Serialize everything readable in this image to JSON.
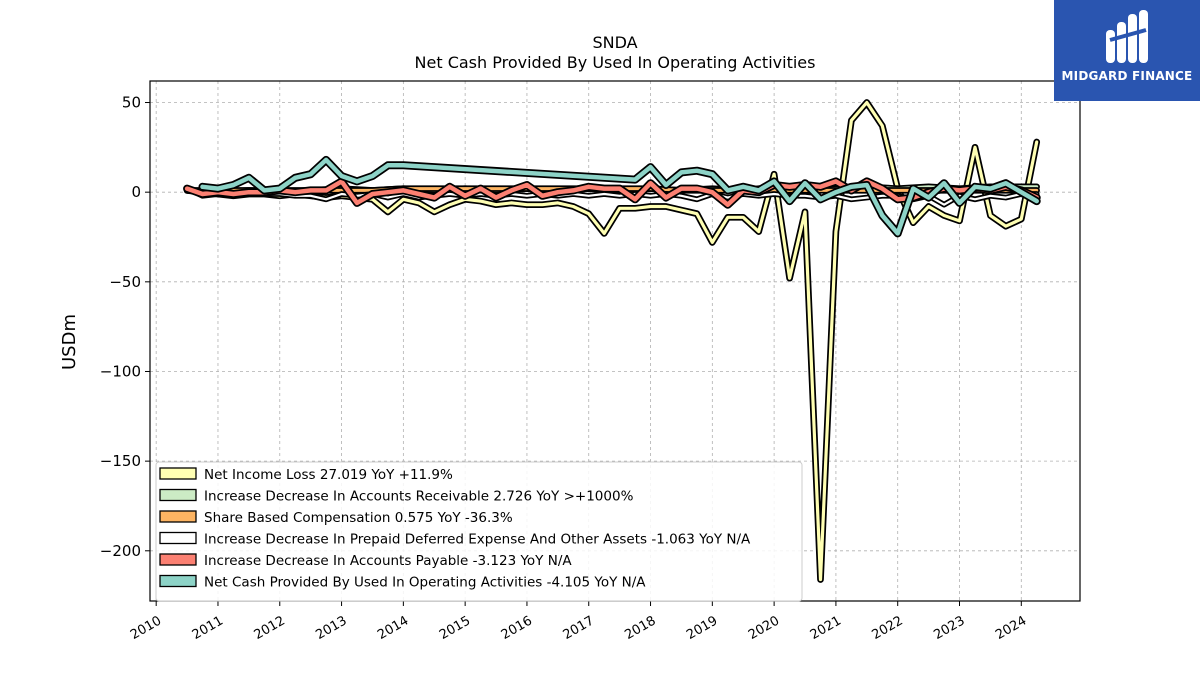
{
  "chart_data": {
    "type": "line",
    "title": "SNDA",
    "subtitle": "Net Cash Provided By Used In Operating Activities",
    "ylabel": "USDm",
    "xlabel": "",
    "xlim": [
      2009.9,
      2024.95
    ],
    "ylim": [
      -228,
      62
    ],
    "yticks": [
      50,
      0,
      -50,
      -100,
      -150,
      -200
    ],
    "ytick_labels": [
      "50",
      "0",
      "−50",
      "−100",
      "−150",
      "−200"
    ],
    "xticks": [
      2010,
      2011,
      2012,
      2013,
      2014,
      2015,
      2016,
      2017,
      2018,
      2019,
      2020,
      2021,
      2022,
      2023,
      2024
    ],
    "xtick_labels": [
      "2010",
      "2011",
      "2012",
      "2013",
      "2014",
      "2015",
      "2016",
      "2017",
      "2018",
      "2019",
      "2020",
      "2021",
      "2022",
      "2023",
      "2024"
    ],
    "grid": true,
    "legend_position": "lower-left",
    "series": [
      {
        "name": "Net Income Loss  27.019 YoY +11.9%",
        "color": "#ffffb3",
        "width": 3.2,
        "points": [
          [
            2010.5,
            1
          ],
          [
            2010.75,
            0
          ],
          [
            2011.0,
            -1
          ],
          [
            2011.25,
            -2
          ],
          [
            2011.5,
            -1
          ],
          [
            2011.75,
            -1
          ],
          [
            2012.0,
            -2
          ],
          [
            2012.25,
            -1
          ],
          [
            2012.5,
            -2
          ],
          [
            2012.75,
            -3
          ],
          [
            2013.0,
            -2
          ],
          [
            2013.25,
            -3
          ],
          [
            2013.5,
            -4
          ],
          [
            2013.75,
            -11
          ],
          [
            2014.0,
            -4
          ],
          [
            2014.25,
            -6
          ],
          [
            2014.5,
            -11
          ],
          [
            2014.75,
            -7
          ],
          [
            2015.0,
            -4
          ],
          [
            2015.25,
            -5
          ],
          [
            2015.5,
            -7
          ],
          [
            2015.75,
            -6
          ],
          [
            2016.0,
            -7
          ],
          [
            2016.25,
            -7
          ],
          [
            2016.5,
            -6
          ],
          [
            2016.75,
            -8
          ],
          [
            2017.0,
            -12
          ],
          [
            2017.25,
            -23
          ],
          [
            2017.5,
            -9
          ],
          [
            2017.75,
            -9
          ],
          [
            2018.0,
            -8
          ],
          [
            2018.25,
            -8
          ],
          [
            2018.5,
            -10
          ],
          [
            2018.75,
            -12
          ],
          [
            2019.0,
            -28
          ],
          [
            2019.25,
            -14
          ],
          [
            2019.5,
            -14
          ],
          [
            2019.75,
            -22
          ],
          [
            2020.0,
            10
          ],
          [
            2020.25,
            -48
          ],
          [
            2020.5,
            -11
          ],
          [
            2020.75,
            -216
          ],
          [
            2021.0,
            -22
          ],
          [
            2021.25,
            40
          ],
          [
            2021.5,
            50
          ],
          [
            2021.75,
            37
          ],
          [
            2022.0,
            2
          ],
          [
            2022.25,
            -17
          ],
          [
            2022.5,
            -8
          ],
          [
            2022.75,
            -13
          ],
          [
            2023.0,
            -16
          ],
          [
            2023.25,
            25
          ],
          [
            2023.5,
            -13
          ],
          [
            2023.75,
            -19
          ],
          [
            2024.0,
            -15
          ],
          [
            2024.25,
            28
          ]
        ]
      },
      {
        "name": "Increase Decrease In Accounts Receivable  2.726 YoY >+1000%",
        "color": "#ccebc5",
        "width": 3,
        "points": [
          [
            2010.5,
            1
          ],
          [
            2011.0,
            0
          ],
          [
            2011.5,
            1
          ],
          [
            2012.0,
            0
          ],
          [
            2012.5,
            1
          ],
          [
            2013.0,
            2
          ],
          [
            2013.5,
            1
          ],
          [
            2014.0,
            2
          ],
          [
            2014.5,
            1
          ],
          [
            2015.0,
            2
          ],
          [
            2015.5,
            1
          ],
          [
            2016.0,
            2
          ],
          [
            2016.5,
            1
          ],
          [
            2017.0,
            2
          ],
          [
            2017.5,
            1
          ],
          [
            2018.0,
            2
          ],
          [
            2018.5,
            1
          ],
          [
            2019.0,
            2
          ],
          [
            2019.5,
            1
          ],
          [
            2020.0,
            3
          ],
          [
            2020.5,
            1
          ],
          [
            2021.0,
            2
          ],
          [
            2021.5,
            3
          ],
          [
            2022.0,
            2
          ],
          [
            2022.5,
            3
          ],
          [
            2023.0,
            2
          ],
          [
            2023.5,
            3
          ],
          [
            2024.0,
            3
          ],
          [
            2024.25,
            3
          ]
        ]
      },
      {
        "name": "Share Based Compensation  0.575 YoY -36.3%",
        "color": "#fdb462",
        "width": 3,
        "points": [
          [
            2010.5,
            1
          ],
          [
            2011.0,
            1
          ],
          [
            2011.5,
            1
          ],
          [
            2012.0,
            1
          ],
          [
            2012.5,
            1
          ],
          [
            2013.0,
            1
          ],
          [
            2013.5,
            1
          ],
          [
            2014.0,
            2
          ],
          [
            2014.5,
            2
          ],
          [
            2015.0,
            2
          ],
          [
            2015.5,
            2
          ],
          [
            2016.0,
            2
          ],
          [
            2016.5,
            2
          ],
          [
            2017.0,
            2
          ],
          [
            2017.5,
            2
          ],
          [
            2018.0,
            2
          ],
          [
            2018.5,
            1
          ],
          [
            2019.0,
            1
          ],
          [
            2019.5,
            1
          ],
          [
            2020.0,
            1
          ],
          [
            2020.5,
            1
          ],
          [
            2021.0,
            1
          ],
          [
            2021.5,
            1
          ],
          [
            2022.0,
            1
          ],
          [
            2022.5,
            1
          ],
          [
            2023.0,
            1
          ],
          [
            2023.5,
            1
          ],
          [
            2024.0,
            1
          ],
          [
            2024.25,
            1
          ]
        ]
      },
      {
        "name": "Increase Decrease In Prepaid Deferred Expense And Other Assets  -1.063 YoY N/A",
        "color": "#ffffff",
        "width": 2.2,
        "points": [
          [
            2010.5,
            2
          ],
          [
            2010.75,
            -2
          ],
          [
            2011.0,
            -1
          ],
          [
            2011.25,
            -2
          ],
          [
            2011.5,
            -1
          ],
          [
            2011.75,
            -1
          ],
          [
            2012.0,
            -1
          ],
          [
            2012.25,
            -2
          ],
          [
            2012.5,
            -2
          ],
          [
            2012.75,
            -4
          ],
          [
            2013.0,
            -1
          ],
          [
            2013.25,
            -2
          ],
          [
            2013.5,
            -1
          ],
          [
            2013.75,
            -3
          ],
          [
            2014.0,
            -1
          ],
          [
            2014.25,
            -3
          ],
          [
            2014.5,
            -2
          ],
          [
            2014.75,
            -1
          ],
          [
            2015.0,
            -2
          ],
          [
            2015.25,
            -1
          ],
          [
            2015.5,
            -2
          ],
          [
            2015.75,
            -1
          ],
          [
            2016.0,
            -2
          ],
          [
            2016.25,
            -1
          ],
          [
            2016.5,
            -2
          ],
          [
            2016.75,
            -1
          ],
          [
            2017.0,
            -2
          ],
          [
            2017.25,
            -1
          ],
          [
            2017.5,
            -2
          ],
          [
            2017.75,
            -1
          ],
          [
            2018.0,
            -2
          ],
          [
            2018.25,
            -1
          ],
          [
            2018.5,
            -2
          ],
          [
            2018.75,
            -4
          ],
          [
            2019.0,
            -1
          ],
          [
            2019.25,
            -3
          ],
          [
            2019.5,
            -1
          ],
          [
            2019.75,
            -2
          ],
          [
            2020.0,
            -1
          ],
          [
            2020.25,
            -2
          ],
          [
            2020.5,
            -2
          ],
          [
            2020.75,
            -3
          ],
          [
            2021.0,
            -2
          ],
          [
            2021.25,
            -4
          ],
          [
            2021.5,
            -3
          ],
          [
            2021.75,
            -2
          ],
          [
            2022.0,
            -2
          ],
          [
            2022.25,
            -4
          ],
          [
            2022.5,
            -2
          ],
          [
            2022.75,
            -7
          ],
          [
            2023.0,
            -2
          ],
          [
            2023.25,
            -4
          ],
          [
            2023.5,
            -2
          ],
          [
            2023.75,
            -3
          ],
          [
            2024.0,
            -1
          ],
          [
            2024.25,
            -1
          ]
        ]
      },
      {
        "name": "Increase Decrease In Accounts Payable  -3.123 YoY N/A",
        "color": "#fb8072",
        "width": 4.5,
        "points": [
          [
            2010.5,
            2
          ],
          [
            2010.75,
            -1
          ],
          [
            2011.0,
            0
          ],
          [
            2011.25,
            -1
          ],
          [
            2011.5,
            0
          ],
          [
            2011.75,
            0
          ],
          [
            2012.0,
            1
          ],
          [
            2012.25,
            0
          ],
          [
            2012.5,
            1
          ],
          [
            2012.75,
            1
          ],
          [
            2013.0,
            6
          ],
          [
            2013.25,
            -6
          ],
          [
            2013.5,
            -1
          ],
          [
            2013.75,
            0
          ],
          [
            2014.0,
            1
          ],
          [
            2014.25,
            -1
          ],
          [
            2014.5,
            -3
          ],
          [
            2014.75,
            3
          ],
          [
            2015.0,
            -2
          ],
          [
            2015.25,
            2
          ],
          [
            2015.5,
            -3
          ],
          [
            2015.75,
            1
          ],
          [
            2016.0,
            4
          ],
          [
            2016.25,
            -2
          ],
          [
            2016.5,
            0
          ],
          [
            2016.75,
            1
          ],
          [
            2017.0,
            3
          ],
          [
            2017.25,
            2
          ],
          [
            2017.5,
            2
          ],
          [
            2017.75,
            -4
          ],
          [
            2018.0,
            5
          ],
          [
            2018.25,
            -3
          ],
          [
            2018.5,
            2
          ],
          [
            2018.75,
            2
          ],
          [
            2019.0,
            0
          ],
          [
            2019.25,
            -7
          ],
          [
            2019.5,
            1
          ],
          [
            2019.75,
            0
          ],
          [
            2020.0,
            4
          ],
          [
            2020.25,
            3
          ],
          [
            2020.5,
            4
          ],
          [
            2020.75,
            3
          ],
          [
            2021.0,
            6
          ],
          [
            2021.25,
            1
          ],
          [
            2021.5,
            6
          ],
          [
            2021.75,
            2
          ],
          [
            2022.0,
            -4
          ],
          [
            2022.25,
            -3
          ],
          [
            2022.5,
            0
          ],
          [
            2022.75,
            2
          ],
          [
            2023.0,
            1
          ],
          [
            2023.25,
            2
          ],
          [
            2023.5,
            1
          ],
          [
            2023.75,
            3
          ],
          [
            2024.0,
            1
          ],
          [
            2024.25,
            -3
          ]
        ]
      },
      {
        "name": "Net Cash Provided By Used In Operating Activities  -4.105 YoY N/A",
        "color": "#8dd3c7",
        "width": 4.5,
        "points": [
          [
            2010.75,
            3
          ],
          [
            2011.0,
            2
          ],
          [
            2011.25,
            4
          ],
          [
            2011.5,
            8
          ],
          [
            2011.75,
            1
          ],
          [
            2012.0,
            2
          ],
          [
            2012.25,
            8
          ],
          [
            2012.5,
            10
          ],
          [
            2012.75,
            18
          ],
          [
            2013.0,
            9
          ],
          [
            2013.25,
            6
          ],
          [
            2013.5,
            9
          ],
          [
            2013.75,
            15
          ],
          [
            2014.0,
            15
          ],
          [
            2017.75,
            7
          ],
          [
            2018.0,
            14
          ],
          [
            2018.25,
            4
          ],
          [
            2018.5,
            11
          ],
          [
            2018.75,
            12
          ],
          [
            2019.0,
            10
          ],
          [
            2019.25,
            1
          ],
          [
            2019.5,
            3
          ],
          [
            2019.75,
            1
          ],
          [
            2020.0,
            6
          ],
          [
            2020.25,
            -5
          ],
          [
            2020.5,
            5
          ],
          [
            2020.75,
            -4
          ],
          [
            2021.0,
            0
          ],
          [
            2021.25,
            3
          ],
          [
            2021.5,
            4
          ],
          [
            2021.75,
            -13
          ],
          [
            2022.0,
            -23
          ],
          [
            2022.25,
            2
          ],
          [
            2022.5,
            -3
          ],
          [
            2022.75,
            5
          ],
          [
            2023.0,
            -6
          ],
          [
            2023.25,
            3
          ],
          [
            2023.5,
            2
          ],
          [
            2023.75,
            5
          ],
          [
            2024.0,
            0
          ],
          [
            2024.25,
            -5
          ]
        ]
      }
    ]
  },
  "logo": {
    "text": "MIDGARD FINANCE",
    "color": "#2a55b0"
  }
}
